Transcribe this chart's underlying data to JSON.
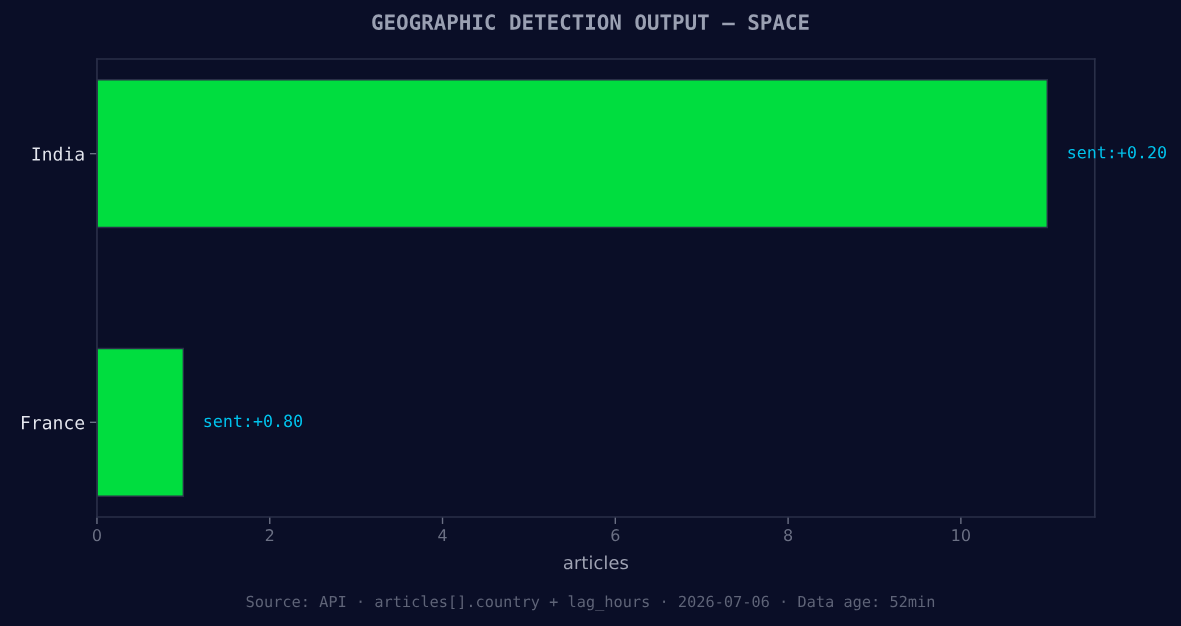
{
  "chart_data": {
    "type": "bar",
    "orientation": "horizontal",
    "title": "GEOGRAPHIC DETECTION OUTPUT — SPACE",
    "xlabel": "articles",
    "categories": [
      "India",
      "France"
    ],
    "values": [
      11,
      1
    ],
    "color": "#00dd3f",
    "xlim": [
      0,
      11.55
    ],
    "xticks": [
      0,
      2,
      4,
      6,
      8,
      10
    ],
    "annotations": [
      {
        "text": "sent:+0.20",
        "x": 11,
        "y": "India"
      },
      {
        "text": "sent:+0.80",
        "x": 1,
        "y": "France"
      },
      "Source: API · articles[].country + lag_hours · 2026-07-06 · Data age: 52min"
    ]
  }
}
